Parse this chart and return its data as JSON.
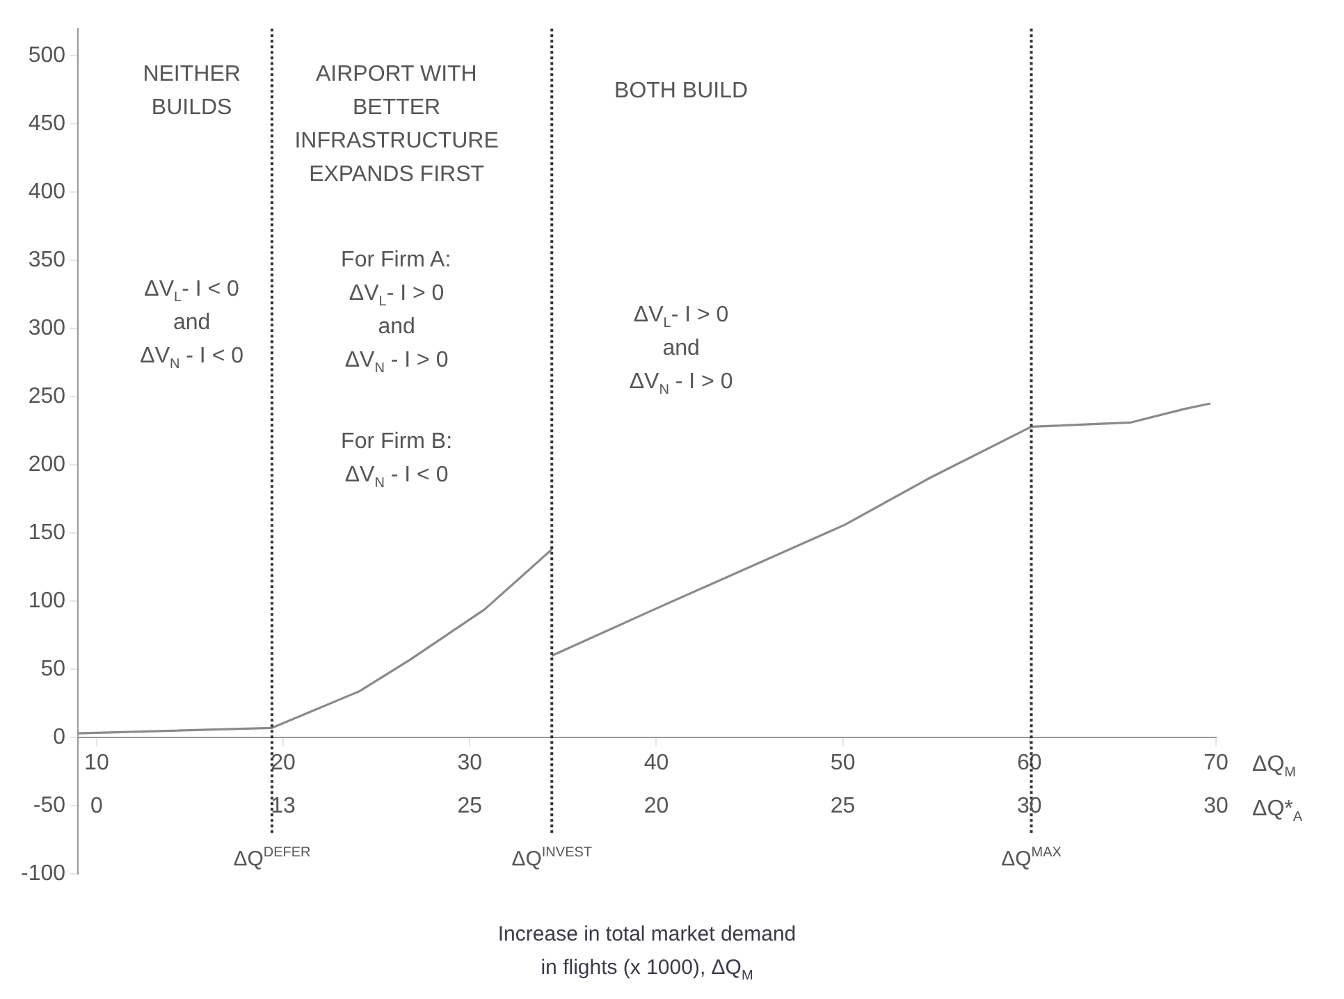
{
  "chart_data": {
    "type": "line",
    "xlabel": "Increase in total market demand\nin flights (x 1000), ΔQ$_{M}$",
    "series": [
      {
        "color": "#8a8a8a",
        "x": [
          9,
          19.4,
          24.1,
          26.8,
          30.8,
          34.4
        ],
        "values": [
          3,
          7,
          34,
          57,
          94,
          138
        ]
      },
      {
        "color": "#8a8a8a",
        "x": [
          34.4,
          39.9,
          50.1,
          54.6,
          60.1,
          65.4,
          68.3,
          69.7
        ],
        "values": [
          60,
          94,
          156,
          190,
          228,
          231,
          241,
          245
        ]
      }
    ],
    "xlim": [
      9,
      70
    ],
    "xticks": [
      10,
      20,
      30,
      40,
      50,
      60,
      70
    ],
    "ylim": [
      -100,
      520
    ],
    "yticks": [
      -100,
      -50,
      0,
      50,
      100,
      150,
      200,
      250,
      300,
      350,
      400,
      450,
      500
    ],
    "ref_lines": [
      {
        "axis": "x",
        "value": 19.4,
        "label": "ΔQ$^{DEFER}$",
        "color": "#333333",
        "line_style": "dotted"
      },
      {
        "axis": "x",
        "value": 34.4,
        "label": "ΔQ$^{INVEST}$",
        "color": "#333333",
        "line_style": "dotted"
      },
      {
        "axis": "x",
        "value": 60.1,
        "label": "ΔQ$^{MAX}$",
        "color": "#333333",
        "line_style": "dotted"
      }
    ],
    "annotations": [
      "ΔQ$_{M}$",
      "ΔQ*$_{A}$",
      "0",
      "13",
      "25",
      "20",
      "25",
      "30",
      "30",
      "NEITHER\nBUILDS",
      "AIRPORT WITH\nBETTER\nINFRASTRUCTURE\nEXPANDS FIRST",
      "BOTH BUILD",
      "ΔV$_{L}$- I < 0\nand\nΔV$_{N}$ - I < 0",
      "For Firm A:\nΔV$_{L}$- I > 0\nand\nΔV$_{N}$ - I > 0",
      "For Firm B:\nΔV$_{N}$ - I < 0",
      "ΔV$_{L}$- I > 0\nand\nΔV$_{N}$ - I > 0"
    ],
    "grid": false,
    "legend": false,
    "marker": "none",
    "line_style": "solid"
  }
}
